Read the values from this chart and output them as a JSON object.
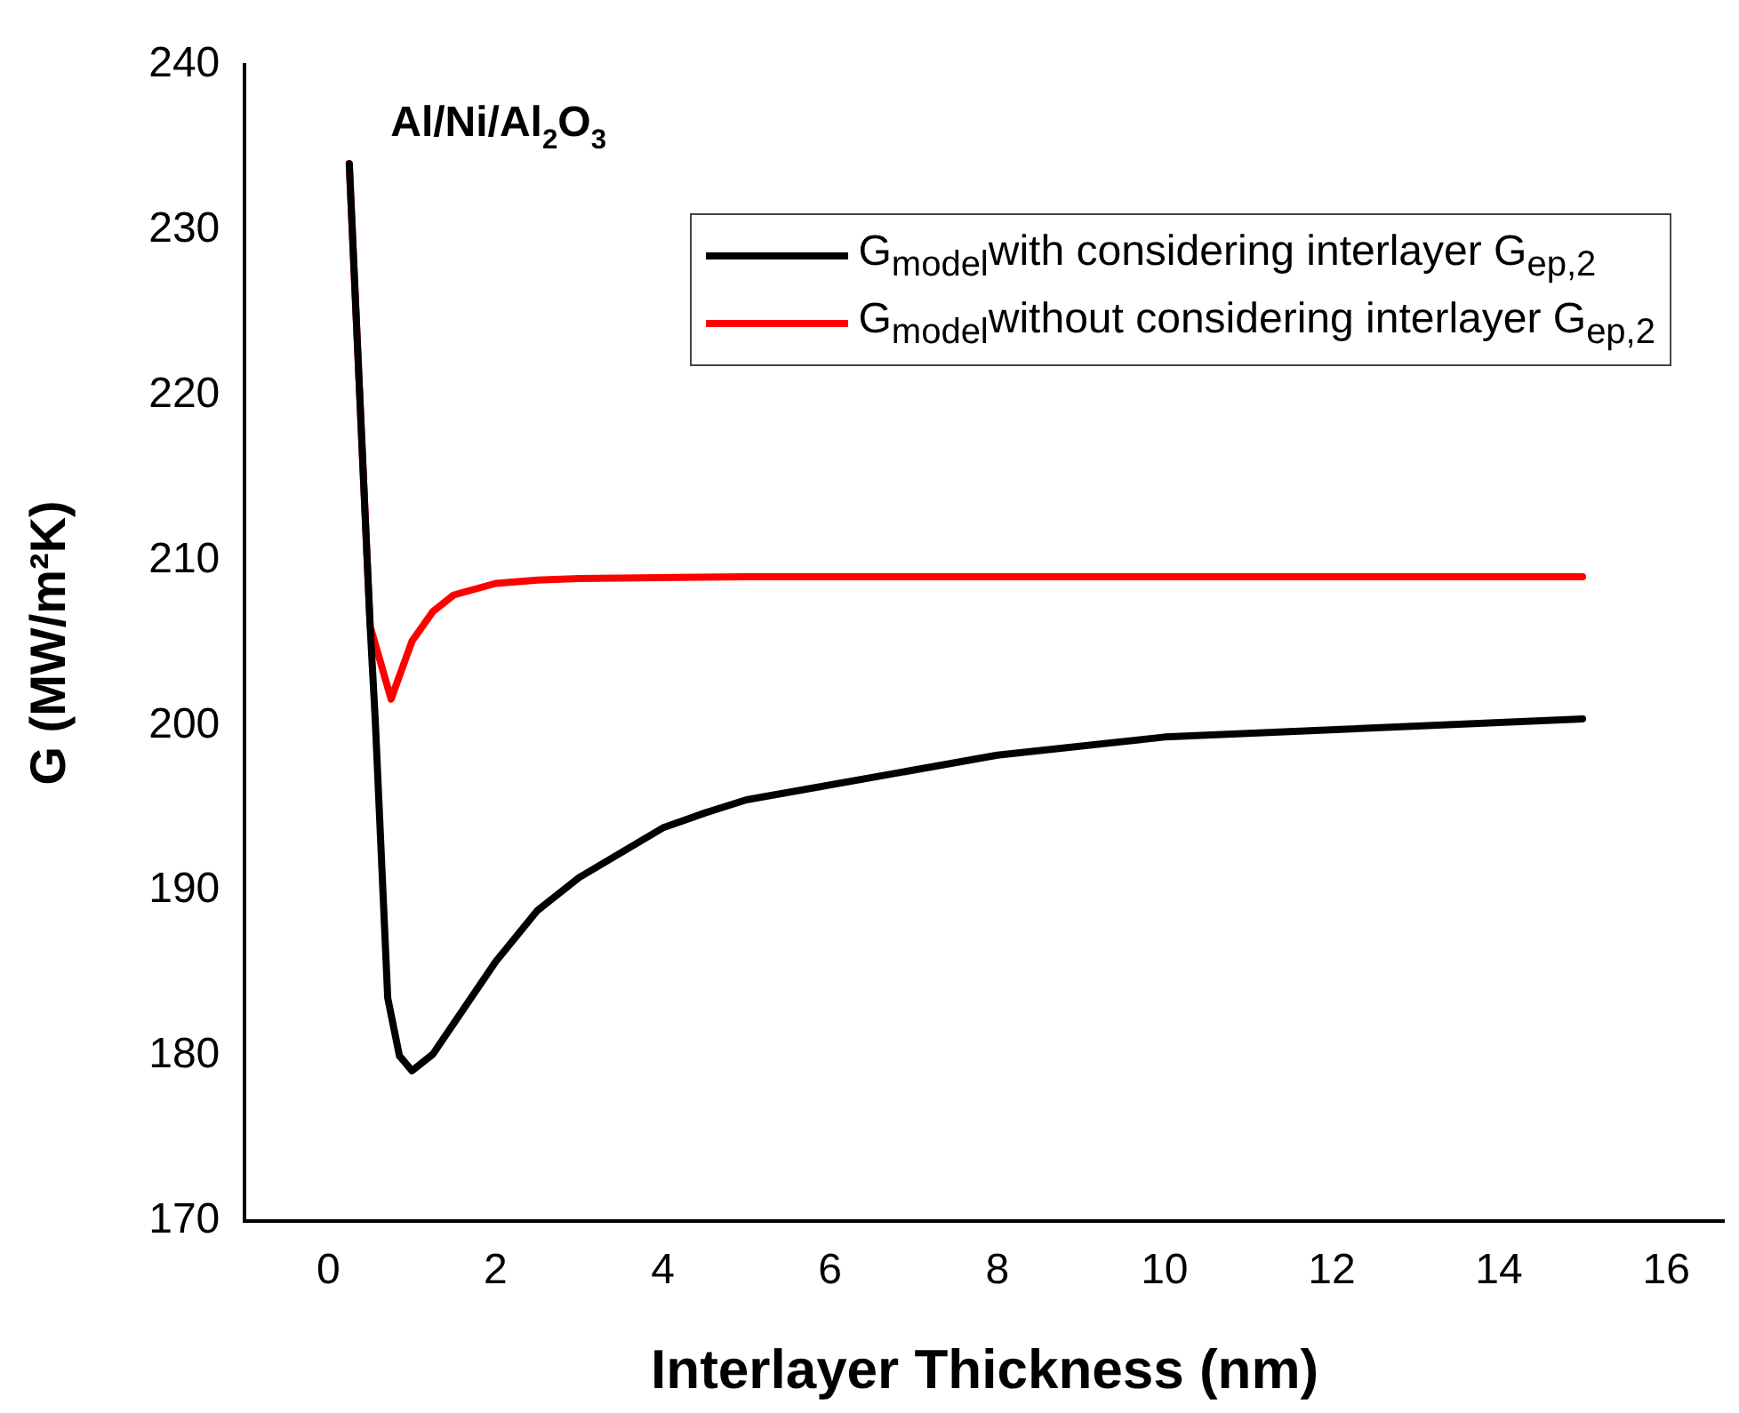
{
  "chart_data": {
    "type": "line",
    "xlabel": "Interlayer Thickness (nm)",
    "ylabel": "G (MW/m²K)",
    "annotations": [
      "Al/Ni/Al$_{2}$O$_{3}$"
    ],
    "xlim": [
      -1,
      16.7
    ],
    "xticks": [
      0,
      2,
      4,
      6,
      8,
      10,
      12,
      14,
      16
    ],
    "ylim": [
      170,
      240
    ],
    "yticks": [
      170,
      180,
      190,
      200,
      210,
      220,
      230,
      240
    ],
    "grid": false,
    "legend": "top right",
    "marker": "none",
    "line_style": "solid",
    "series": [
      {
        "name": "G$_{model}$with considering interlayer G$_{ep,2}$",
        "color": "#000000",
        "x": [
          0.25,
          0.5,
          0.56,
          0.71,
          0.85,
          1,
          1.25,
          2,
          2.5,
          3,
          4,
          4.5,
          5,
          8,
          10,
          15
        ],
        "values": [
          234,
          206,
          200.4,
          183.5,
          180,
          179.1,
          180.1,
          185.7,
          188.8,
          190.8,
          193.8,
          194.7,
          195.5,
          198.2,
          199.3,
          200.4
        ]
      },
      {
        "name": "G$_{model}$without considering interlayer G$_{ep,2}$",
        "color": "#ff0000",
        "x": [
          0.25,
          0.5,
          0.75,
          1,
          1.25,
          1.5,
          2,
          2.5,
          3,
          5,
          15
        ],
        "values": [
          234,
          206,
          201.6,
          205.1,
          206.9,
          207.9,
          208.6,
          208.8,
          208.9,
          209,
          209
        ]
      }
    ]
  }
}
